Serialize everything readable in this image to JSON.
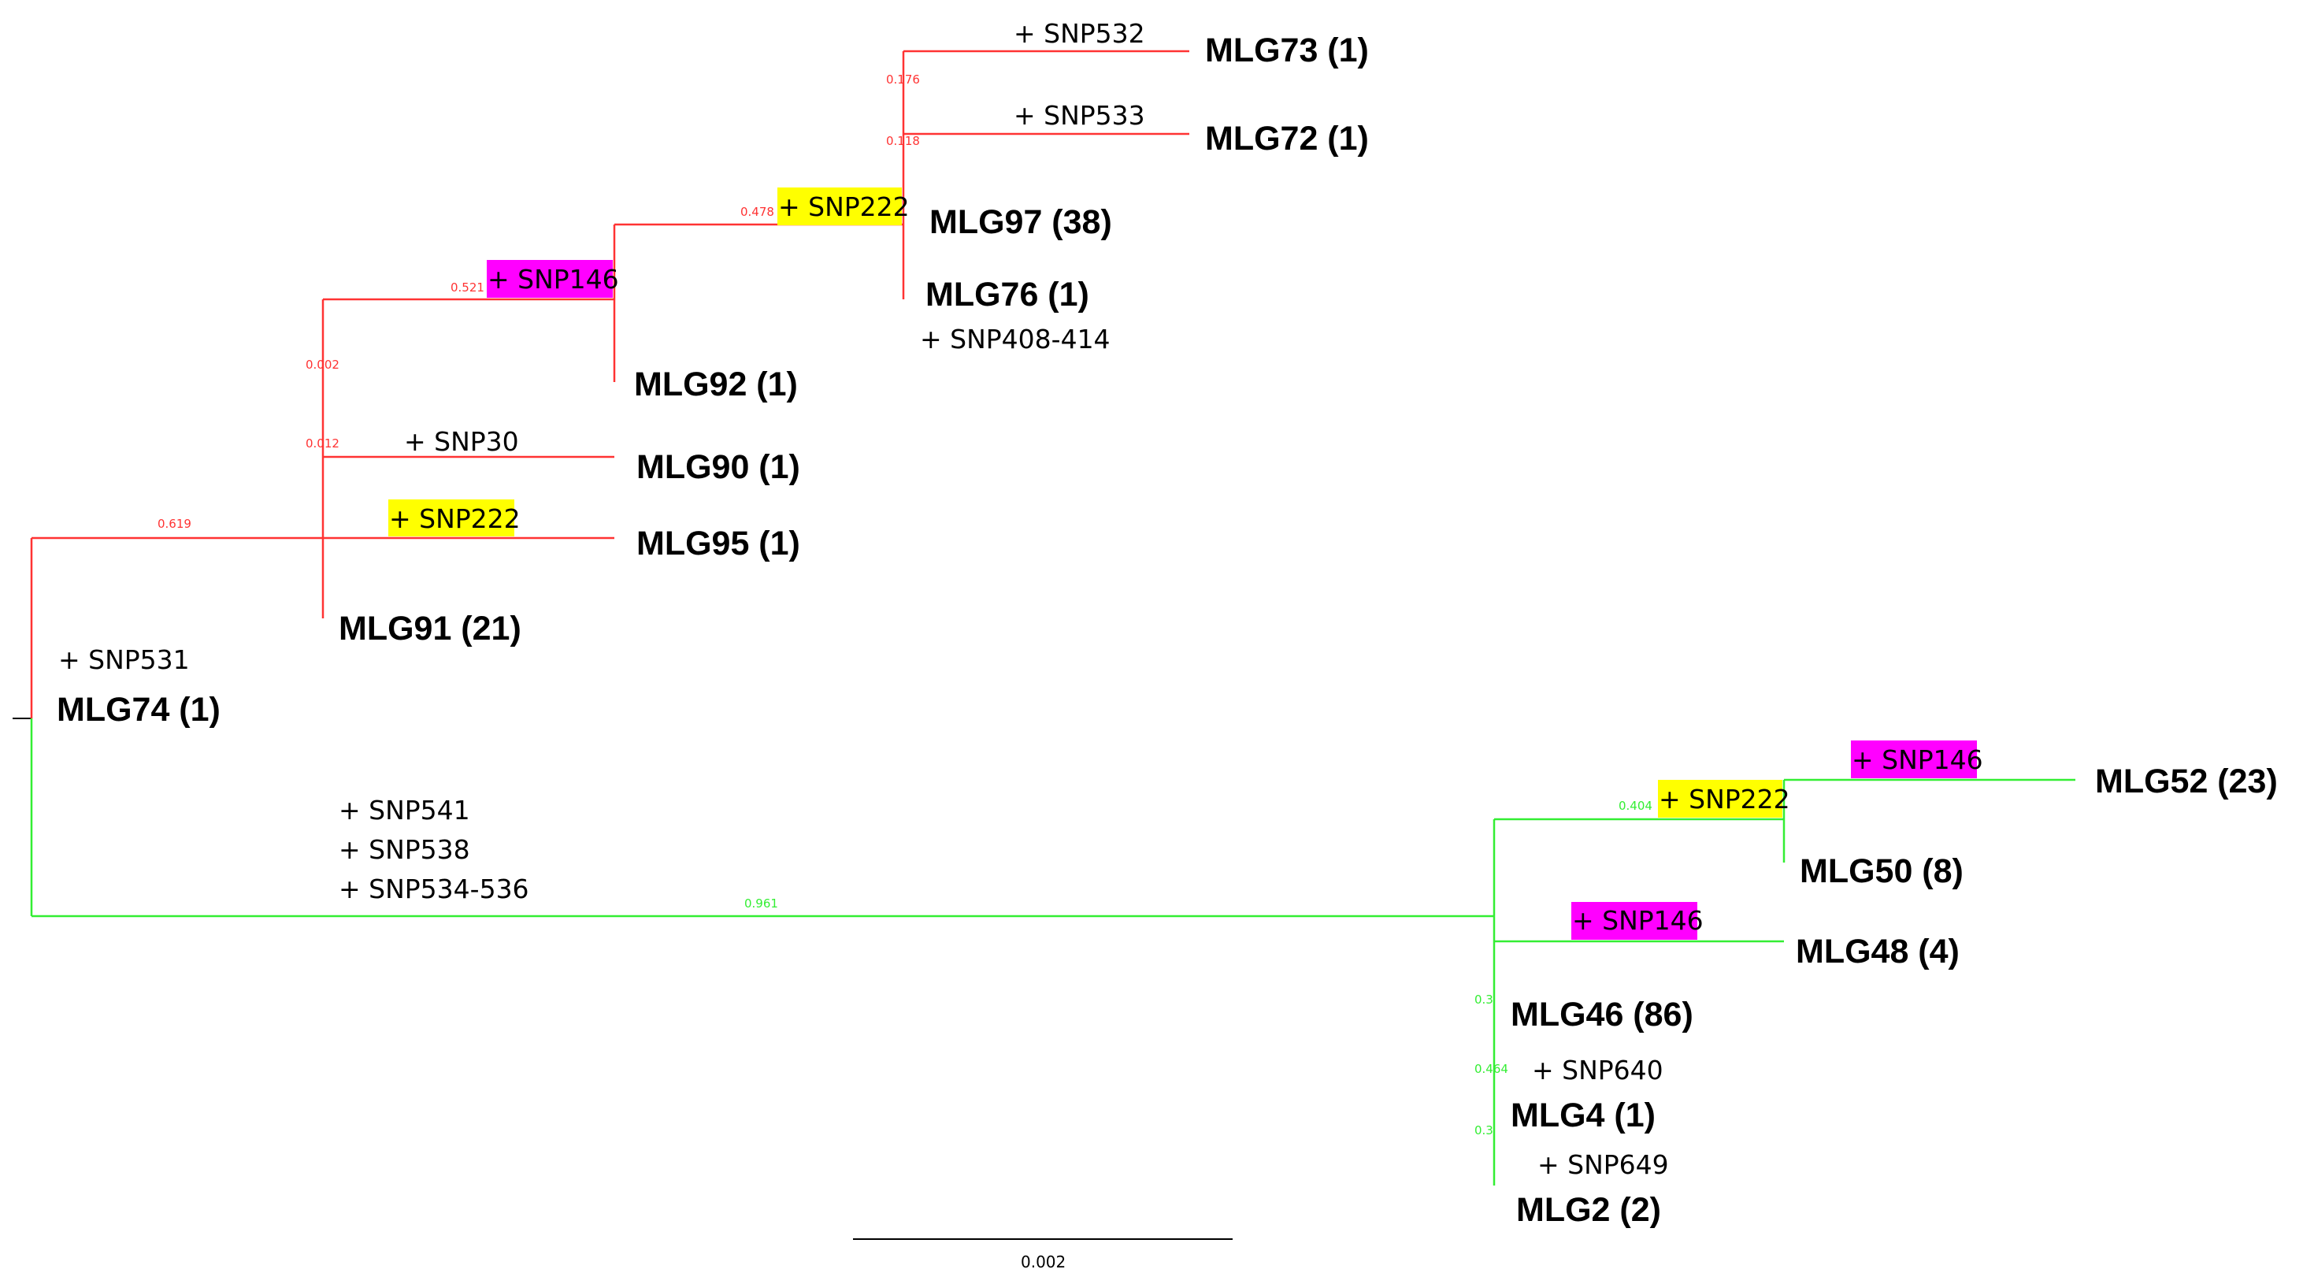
{
  "figure": "Phylogenetic tree of multilocus genotypes (MLG)",
  "colors": {
    "red_clade": "#ff3333",
    "green_clade": "#33ee33",
    "snp146_highlight": "#ff00ff",
    "snp222_highlight": "#ffff00"
  },
  "tips": {
    "mlg73": "MLG73 (1)",
    "mlg72": "MLG72 (1)",
    "mlg97": "MLG97 (38)",
    "mlg76": "MLG76 (1)",
    "mlg92": "MLG92 (1)",
    "mlg90": "MLG90 (1)",
    "mlg95": "MLG95 (1)",
    "mlg91": "MLG91 (21)",
    "mlg74": "MLG74 (1)",
    "mlg52": "MLG52 (23)",
    "mlg50": "MLG50 (8)",
    "mlg48": "MLG48 (4)",
    "mlg46": "MLG46 (86)",
    "mlg4": "MLG4 (1)",
    "mlg2": "MLG2 (2)"
  },
  "mutations": {
    "snp532": "+ SNP532",
    "snp533": "+ SNP533",
    "snp222_a": "+ SNP222",
    "snp146_a": "+ SNP146",
    "snp408": "+ SNP408-414",
    "snp30": "+ SNP30",
    "snp222_b": "+ SNP222",
    "snp531": "+ SNP531",
    "snp541": "+ SNP541",
    "snp538": "+ SNP538",
    "snp534": "+ SNP534-536",
    "snp146_b": "+ SNP146",
    "snp222_c": "+ SNP222",
    "snp146_c": "+ SNP146",
    "snp640": "+ SNP640",
    "snp649": "+ SNP649"
  },
  "support": {
    "s176": "0.176",
    "s118": "0.118",
    "s478": "0.478",
    "s521": "0.521",
    "s002": "0.002",
    "s012": "0.012",
    "s619": "0.619",
    "s961": "0.961",
    "s404": "0.404",
    "s3a": "0.3",
    "s464": "0.464",
    "s3b": "0.3"
  },
  "scale_bar": {
    "label": "0.002"
  }
}
